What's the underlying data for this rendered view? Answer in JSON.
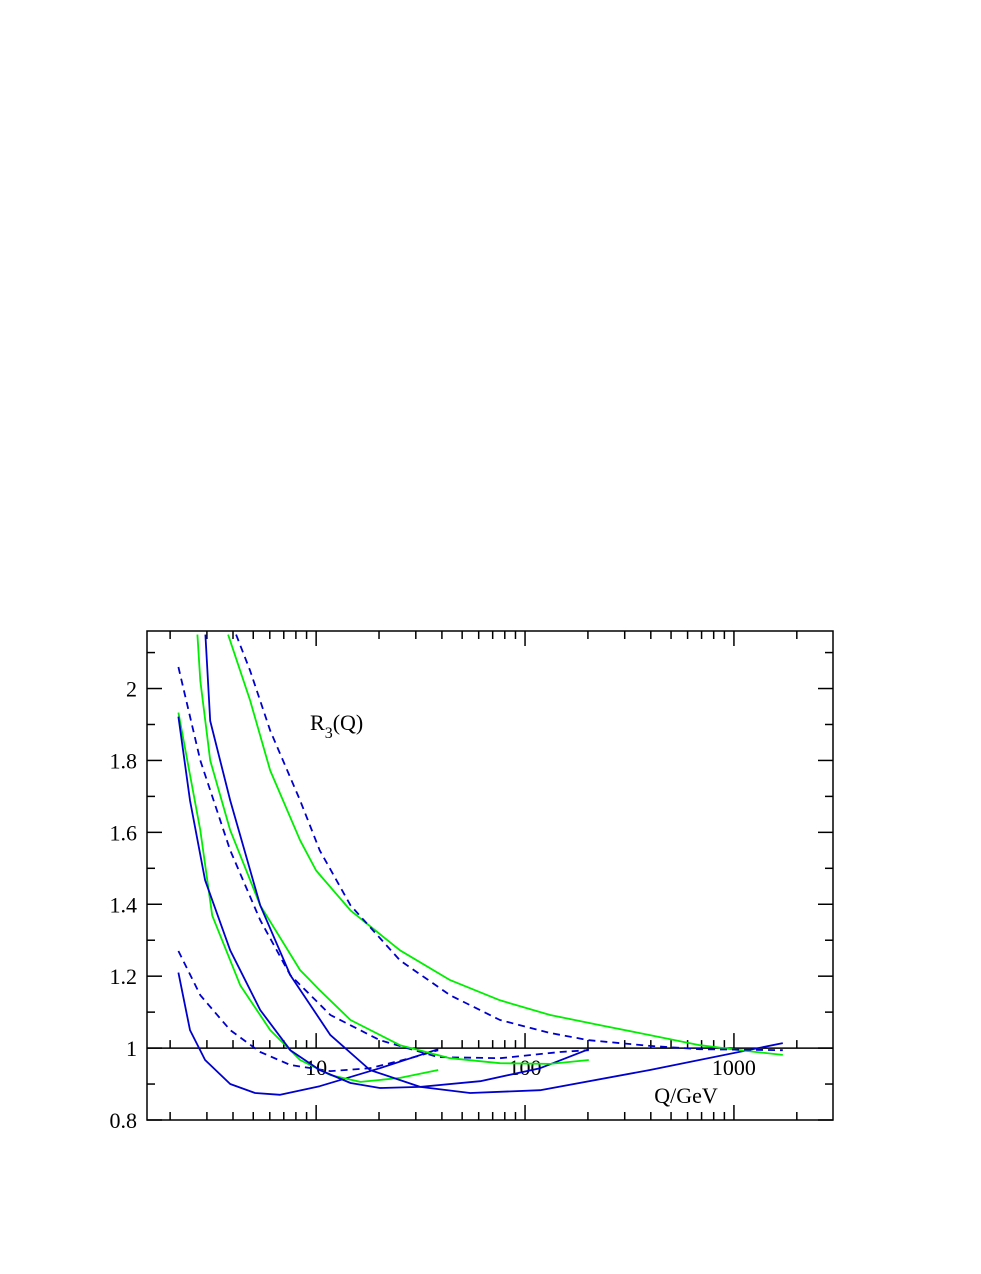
{
  "chart_data": {
    "type": "line",
    "annotation": {
      "base": "R",
      "subscript": "3",
      "suffix": "(Q)"
    },
    "xlabel": "Q/GeV",
    "xscale": "log",
    "xlim": [
      1.55,
      2980
    ],
    "ylim": [
      0.8,
      2.16
    ],
    "xticks": [
      10,
      100,
      1000
    ],
    "xminor": [
      2,
      3,
      4,
      5,
      6,
      7,
      8,
      9,
      20,
      30,
      40,
      50,
      60,
      70,
      80,
      90,
      200,
      300,
      400,
      500,
      600,
      700,
      800,
      900,
      2000
    ],
    "yticks": [
      0.8,
      1,
      1.2,
      1.4,
      1.6,
      1.8,
      2
    ],
    "yminor": [
      0.9,
      1.1,
      1.3,
      1.5,
      1.7,
      1.9,
      2.1
    ],
    "xaxis_at": 1,
    "series": [
      {
        "color": "#0000cc",
        "dash": false,
        "x": [
          2.19,
          2.49,
          2.94,
          3.88,
          5.1,
          6.73,
          10.4,
          20.2,
          38.4
        ],
        "values": [
          1.21,
          1.05,
          0.967,
          0.9,
          0.875,
          0.87,
          0.894,
          0.944,
          0.997
        ]
      },
      {
        "color": "#0000cc",
        "dash": true,
        "x": [
          2.19,
          2.79,
          3.88,
          5.4,
          7.52,
          11.7,
          18.1,
          28.2,
          38.4
        ],
        "values": [
          1.27,
          1.147,
          1.05,
          0.989,
          0.953,
          0.936,
          0.944,
          0.972,
          0.994
        ]
      },
      {
        "color": "#00ee00",
        "dash": false,
        "x": [
          2.19,
          2.79,
          3.18,
          3.47,
          4.33,
          6.03,
          8.38,
          11.7,
          16.3,
          25.2,
          38.4
        ],
        "values": [
          1.933,
          1.606,
          1.369,
          1.314,
          1.175,
          1.05,
          0.967,
          0.925,
          0.906,
          0.917,
          0.939
        ]
      },
      {
        "color": "#0000cc",
        "dash": false,
        "x": [
          2.19,
          2.49,
          2.94,
          3.88,
          5.4,
          7.52,
          10.4,
          14.6,
          20.2,
          31.5,
          61.0,
          118,
          202
        ],
        "values": [
          1.922,
          1.689,
          1.467,
          1.272,
          1.106,
          0.994,
          0.939,
          0.903,
          0.889,
          0.892,
          0.908,
          0.944,
          0.997
        ]
      },
      {
        "color": "#0000cc",
        "dash": true,
        "x": [
          2.19,
          2.79,
          3.88,
          5.4,
          7.52,
          11.7,
          20.2,
          38.4,
          75.9,
          147,
          202
        ],
        "values": [
          2.06,
          1.8,
          1.55,
          1.356,
          1.203,
          1.092,
          1.022,
          0.975,
          0.972,
          0.989,
          0.994
        ]
      },
      {
        "color": "#00ee00",
        "dash": false,
        "x": [
          2.7,
          2.79,
          3.11,
          3.88,
          5.4,
          8.38,
          9.3,
          10.4,
          14.6,
          25.2,
          43.8,
          75.9,
          132,
          202
        ],
        "values": [
          2.15,
          2.022,
          1.8,
          1.606,
          1.397,
          1.217,
          1.19,
          1.161,
          1.078,
          1.008,
          0.972,
          0.958,
          0.956,
          0.967
        ]
      },
      {
        "color": "#0000cc",
        "dash": false,
        "x": [
          2.95,
          3.11,
          3.88,
          5.4,
          7.52,
          11.7,
          18.1,
          31.5,
          54.6,
          118,
          396,
          1714
        ],
        "values": [
          2.15,
          1.91,
          1.689,
          1.397,
          1.203,
          1.036,
          0.939,
          0.892,
          0.875,
          0.883,
          0.939,
          1.014
        ]
      },
      {
        "color": "#00ee00",
        "dash": false,
        "x": [
          3.79,
          4.83,
          6.03,
          8.38,
          10.0,
          14.6,
          25.2,
          43.8,
          75.9,
          132,
          228,
          396,
          687,
          1069,
          1714
        ],
        "values": [
          2.15,
          1.967,
          1.772,
          1.578,
          1.494,
          1.383,
          1.272,
          1.189,
          1.133,
          1.092,
          1.064,
          1.036,
          1.008,
          0.994,
          0.981
        ]
      },
      {
        "color": "#0000cc",
        "dash": true,
        "x": [
          4.14,
          4.83,
          6.03,
          8.38,
          10.4,
          14.6,
          25.2,
          43.8,
          75.9,
          132,
          202,
          396,
          687,
          1714
        ],
        "values": [
          2.15,
          2.05,
          1.883,
          1.689,
          1.55,
          1.397,
          1.244,
          1.147,
          1.078,
          1.042,
          1.022,
          1.006,
          0.997,
          0.994
        ]
      }
    ]
  }
}
